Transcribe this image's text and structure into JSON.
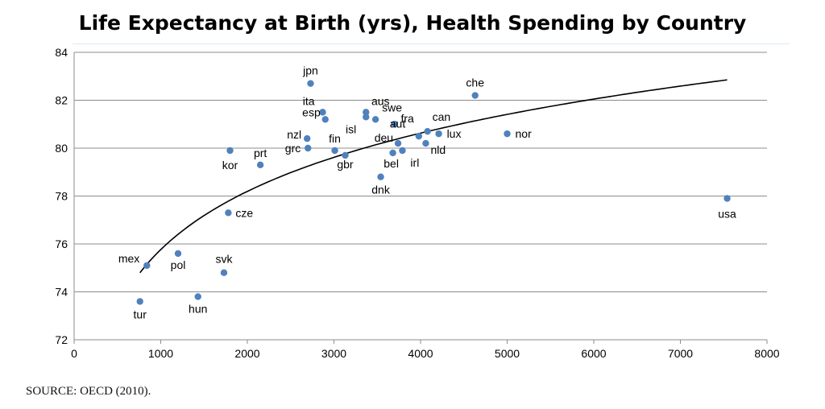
{
  "chart_data": {
    "type": "scatter",
    "title": "Life Expectancy at Birth (yrs), Health Spending by Country",
    "xlabel": "",
    "ylabel": "",
    "xlim": [
      0,
      8000
    ],
    "ylim": [
      72,
      84
    ],
    "xticks": [
      0,
      1000,
      2000,
      3000,
      4000,
      5000,
      6000,
      7000,
      8000
    ],
    "yticks": [
      72,
      74,
      76,
      78,
      80,
      82,
      84
    ],
    "grid": "horizontal",
    "point_color": "#4f81bd",
    "trendline": {
      "type": "logarithmic",
      "x_range": [
        760,
        7540
      ],
      "y_start": 74.8,
      "y_end": 82.85
    },
    "points": [
      {
        "label": "jpn",
        "x": 2730,
        "y": 82.7
      },
      {
        "label": "che",
        "x": 4630,
        "y": 82.2
      },
      {
        "label": "ita",
        "x": 2870,
        "y": 81.5
      },
      {
        "label": "aus",
        "x": 3370,
        "y": 81.5
      },
      {
        "label": "swe",
        "x": 3480,
        "y": 81.2
      },
      {
        "label": "esp",
        "x": 2900,
        "y": 81.2
      },
      {
        "label": "isl",
        "x": 3370,
        "y": 81.3
      },
      {
        "label": "aut",
        "x": 3700,
        "y": 81.0
      },
      {
        "label": "can",
        "x": 4080,
        "y": 80.7
      },
      {
        "label": "fra",
        "x": 3980,
        "y": 80.5
      },
      {
        "label": "lux",
        "x": 4210,
        "y": 80.6
      },
      {
        "label": "nor",
        "x": 5000,
        "y": 80.6
      },
      {
        "label": "nzl",
        "x": 2690,
        "y": 80.4
      },
      {
        "label": "deu",
        "x": 3740,
        "y": 80.2
      },
      {
        "label": "grc",
        "x": 2700,
        "y": 80.0
      },
      {
        "label": "fin",
        "x": 3010,
        "y": 79.9
      },
      {
        "label": "kor",
        "x": 1800,
        "y": 79.9
      },
      {
        "label": "prt",
        "x": 2150,
        "y": 79.3
      },
      {
        "label": "gbr",
        "x": 3130,
        "y": 79.7
      },
      {
        "label": "bel",
        "x": 3680,
        "y": 79.8
      },
      {
        "label": "irl",
        "x": 3790,
        "y": 79.9
      },
      {
        "label": "nld",
        "x": 4060,
        "y": 80.2
      },
      {
        "label": "dnk",
        "x": 3540,
        "y": 78.8
      },
      {
        "label": "cze",
        "x": 1780,
        "y": 77.3
      },
      {
        "label": "usa",
        "x": 7540,
        "y": 77.9
      },
      {
        "label": "mex",
        "x": 840,
        "y": 75.1
      },
      {
        "label": "pol",
        "x": 1200,
        "y": 75.6
      },
      {
        "label": "svk",
        "x": 1730,
        "y": 74.8
      },
      {
        "label": "hun",
        "x": 1430,
        "y": 73.8
      },
      {
        "label": "tur",
        "x": 760,
        "y": 73.6
      }
    ]
  },
  "source": "SOURCE:  OECD (2010)."
}
